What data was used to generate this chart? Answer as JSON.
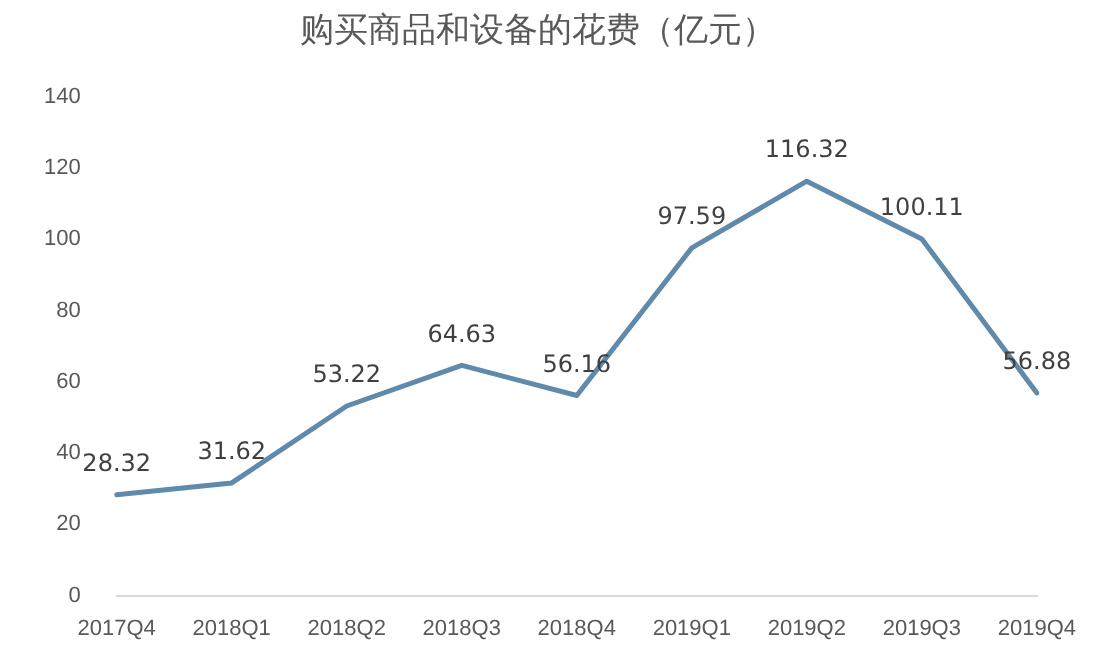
{
  "chart_data": {
    "type": "line",
    "title": "购买商品和设备的花费（亿元）",
    "categories": [
      "2017Q4",
      "2018Q1",
      "2018Q2",
      "2018Q3",
      "2018Q4",
      "2019Q1",
      "2019Q2",
      "2019Q3",
      "2019Q4"
    ],
    "series": [
      {
        "color": "#5f8aab",
        "values": [
          28.32,
          31.62,
          53.22,
          64.63,
          56.16,
          97.59,
          116.32,
          100.11,
          56.88
        ]
      }
    ],
    "ylim": [
      0,
      140
    ],
    "yticks": [
      0,
      20,
      40,
      60,
      80,
      100,
      120,
      140
    ],
    "grid": false,
    "legend": false,
    "marker": "none",
    "line_style": "solid",
    "data_labels": true
  }
}
